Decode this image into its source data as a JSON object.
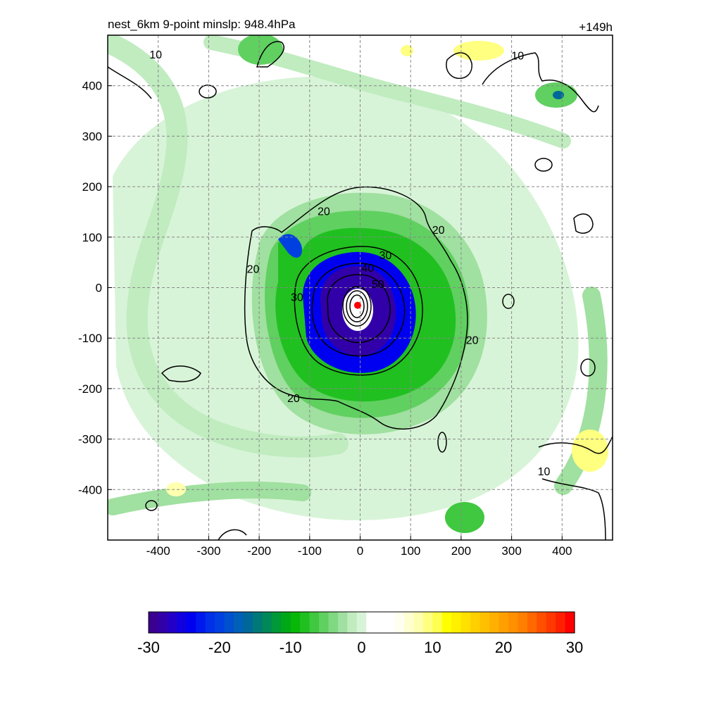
{
  "chart_data": {
    "type": "heatmap",
    "title": "nest_6km  9-point minslp: 948.4hPa",
    "forecast_hour": "+149h",
    "xlabel": "",
    "ylabel": "",
    "xlim": [
      -500,
      500
    ],
    "ylim": [
      -500,
      500
    ],
    "x_ticks": [
      -400,
      -300,
      -200,
      -100,
      0,
      100,
      200,
      300,
      400
    ],
    "y_ticks": [
      400,
      300,
      200,
      100,
      0,
      -100,
      -200,
      -300,
      -400
    ],
    "grid": true,
    "storm_center": {
      "x": -5,
      "y": -35
    },
    "contour_labels": [
      {
        "text": "10",
        "x": -405,
        "y": 462
      },
      {
        "text": "10",
        "x": 312,
        "y": 460
      },
      {
        "text": "10",
        "x": 364,
        "y": -363
      },
      {
        "text": "20",
        "x": -72,
        "y": 152
      },
      {
        "text": "20",
        "x": 155,
        "y": 115
      },
      {
        "text": "20",
        "x": -212,
        "y": 38
      },
      {
        "text": "20",
        "x": 222,
        "y": -103
      },
      {
        "text": "20",
        "x": -132,
        "y": -218
      },
      {
        "text": "30",
        "x": 50,
        "y": 65
      },
      {
        "text": "30",
        "x": -125,
        "y": -18
      },
      {
        "text": "40",
        "x": 15,
        "y": 40
      },
      {
        "text": "50",
        "x": 35,
        "y": 8
      }
    ],
    "colorbar": {
      "min": -30,
      "max": 30,
      "tick_labels": [
        "-30",
        "-20",
        "-10",
        "0",
        "10",
        "20",
        "30"
      ],
      "colors": [
        "#3a0090",
        "#3200a8",
        "#2300c8",
        "#1000e0",
        "#0000f0",
        "#0018f0",
        "#0030e8",
        "#0040e0",
        "#0050d0",
        "#0060b8",
        "#006898",
        "#007878",
        "#008858",
        "#009838",
        "#00a818",
        "#08b808",
        "#20c020",
        "#40c840",
        "#60d060",
        "#80d880",
        "#a0e0a0",
        "#c0ecc0",
        "#d8f4d8",
        "#ffffff",
        "#ffffff",
        "#ffffff",
        "#fffff0",
        "#ffffd0",
        "#ffffb0",
        "#ffff80",
        "#ffff50",
        "#ffff00",
        "#fff000",
        "#ffe000",
        "#ffd000",
        "#ffc000",
        "#ffb000",
        "#ffa000",
        "#ff9000",
        "#ff8000",
        "#ff6800",
        "#ff5000",
        "#ff3800",
        "#ff2000",
        "#ff0000"
      ]
    }
  }
}
